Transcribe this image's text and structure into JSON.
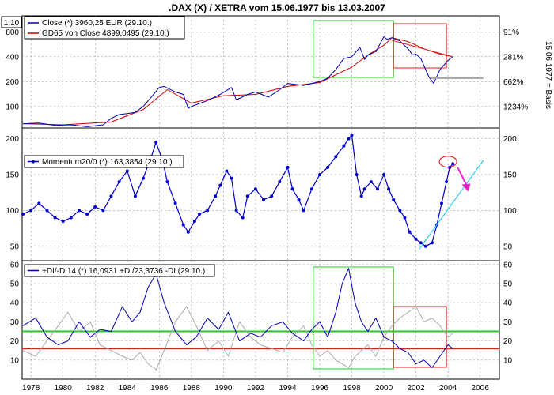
{
  "title": ".DAX (X) / XETRA vom 15.06.1977 bis 13.03.2007",
  "scale_label": "1:10",
  "side_label": "15.06.1977 = Basis",
  "x_ticks": [
    "1978",
    "1980",
    "1982",
    "1984",
    "1986",
    "1988",
    "1990",
    "1992",
    "1994",
    "1996",
    "1998",
    "2000",
    "2002",
    "2004",
    "2006"
  ],
  "x_range": [
    1977.45,
    2007.2
  ],
  "colors": {
    "price": "#0000aa",
    "gd65": "#cc0000",
    "momentum": "#0000cc",
    "di_plus": "#0000aa",
    "di_minus": "#aaaaaa",
    "green_box": "#22cc22",
    "red_box": "#dd2222",
    "magenta": "#ee22cc",
    "cyan": "#33ccee",
    "grid": "#999999"
  },
  "chart_data": [
    {
      "type": "line",
      "panel": "price",
      "scale": "log",
      "ylim": [
        55,
        1250
      ],
      "left_ticks": [
        100,
        200,
        400,
        800
      ],
      "right_ticks": [
        "1234%",
        "662%",
        "281%",
        "91%"
      ],
      "legend": {
        "close_label": "Close (*) 3960,25 EUR (29.10.)",
        "gd_label": "GD65 von Close 4899,0495 (29.10.)"
      },
      "series": [
        {
          "name": "Close",
          "x": [
            1977.5,
            1978.5,
            1979.5,
            1980.5,
            1981.5,
            1982.5,
            1983.0,
            1983.5,
            1984.0,
            1984.5,
            1985.0,
            1985.5,
            1986.0,
            1986.3,
            1987.0,
            1987.5,
            1987.8,
            1988.0,
            1989.0,
            1989.8,
            1990.5,
            1990.8,
            1991.5,
            1992.0,
            1992.8,
            1993.5,
            1994.0,
            1994.5,
            1995.0,
            1995.5,
            1996.0,
            1996.5,
            1997.0,
            1997.5,
            1998.0,
            1998.5,
            1998.8,
            1999.0,
            1999.5,
            2000.0,
            2000.2,
            2000.5,
            2001.0,
            2001.5,
            2001.8,
            2002.0,
            2002.3,
            2002.8,
            2003.1,
            2003.5,
            2004.0,
            2004.3
          ],
          "y": [
            62,
            63,
            59,
            60,
            57,
            60,
            72,
            80,
            82,
            85,
            100,
            130,
            170,
            175,
            150,
            140,
            95,
            100,
            118,
            140,
            170,
            120,
            140,
            150,
            130,
            160,
            190,
            185,
            180,
            190,
            200,
            220,
            280,
            380,
            400,
            520,
            370,
            420,
            460,
            700,
            650,
            680,
            620,
            500,
            420,
            430,
            380,
            230,
            190,
            280,
            360,
            400
          ]
        },
        {
          "name": "GD65 von Close",
          "x": [
            1977.5,
            1980.0,
            1983.0,
            1985.0,
            1986.5,
            1988.0,
            1990.0,
            1992.0,
            1994.0,
            1996.0,
            1998.0,
            1999.0,
            2000.0,
            2000.5,
            2001.5,
            2002.5,
            2003.5,
            2004.3
          ],
          "y": [
            62,
            60,
            65,
            92,
            160,
            110,
            135,
            140,
            175,
            195,
            300,
            420,
            550,
            680,
            610,
            500,
            430,
            400
          ]
        }
      ]
    },
    {
      "type": "line",
      "panel": "momentum",
      "ylim": [
        30,
        215
      ],
      "left_ticks": [
        50,
        100,
        150,
        200
      ],
      "right_ticks": [
        50,
        100,
        150,
        200
      ],
      "legend": {
        "label": "Momentum20/0 (*) 163,3854 (29.10.)"
      },
      "series": [
        {
          "name": "Momentum20/0",
          "x": [
            1977.5,
            1978.0,
            1978.5,
            1979.0,
            1979.5,
            1980.0,
            1980.5,
            1981.0,
            1981.5,
            1982.0,
            1982.5,
            1983.0,
            1983.5,
            1984.0,
            1984.5,
            1985.0,
            1985.5,
            1985.8,
            1986.2,
            1986.5,
            1987.0,
            1987.5,
            1987.8,
            1988.2,
            1988.5,
            1989.0,
            1989.5,
            1989.8,
            1990.2,
            1990.5,
            1990.8,
            1991.2,
            1991.5,
            1992.0,
            1992.5,
            1993.0,
            1993.5,
            1994.0,
            1994.3,
            1994.7,
            1995.0,
            1995.5,
            1996.0,
            1996.5,
            1997.0,
            1997.5,
            1997.8,
            1998.0,
            1998.3,
            1998.6,
            1998.8,
            1999.2,
            1999.6,
            2000.0,
            2000.3,
            2000.6,
            2001.0,
            2001.3,
            2001.6,
            2002.0,
            2002.3,
            2002.6,
            2003.0,
            2003.3,
            2003.6,
            2003.9,
            2004.1,
            2004.3
          ],
          "y": [
            95,
            100,
            110,
            100,
            90,
            85,
            90,
            100,
            95,
            105,
            100,
            120,
            140,
            155,
            120,
            145,
            175,
            195,
            170,
            140,
            110,
            80,
            70,
            85,
            95,
            100,
            120,
            135,
            155,
            145,
            100,
            90,
            120,
            130,
            115,
            120,
            140,
            160,
            130,
            115,
            100,
            130,
            150,
            160,
            175,
            190,
            200,
            205,
            150,
            120,
            130,
            140,
            130,
            150,
            130,
            115,
            100,
            90,
            70,
            60,
            55,
            50,
            55,
            80,
            110,
            140,
            160,
            165
          ]
        }
      ]
    },
    {
      "type": "line",
      "panel": "di",
      "ylim": [
        0,
        62
      ],
      "left_ticks": [
        10,
        20,
        30,
        40,
        50,
        60
      ],
      "right_ticks": [
        10,
        20,
        30,
        40,
        50,
        60
      ],
      "legend": {
        "label": "+DI/-DI14 (*) 16,0931 +DI/23,3736 -DI (29.10.)"
      },
      "levels": [
        25,
        16
      ],
      "series": [
        {
          "name": "+DI",
          "x": [
            1977.5,
            1978.3,
            1979.0,
            1979.7,
            1980.3,
            1981.0,
            1981.7,
            1982.3,
            1983.0,
            1983.7,
            1984.3,
            1984.8,
            1985.3,
            1985.8,
            1986.3,
            1987.0,
            1987.7,
            1988.3,
            1989.0,
            1989.7,
            1990.3,
            1991.0,
            1991.7,
            1992.3,
            1993.0,
            1993.7,
            1994.3,
            1995.0,
            1995.5,
            1996.0,
            1996.5,
            1997.0,
            1997.4,
            1997.8,
            1998.2,
            1998.6,
            1999.0,
            1999.5,
            2000.0,
            2000.5,
            2001.0,
            2001.5,
            2002.0,
            2002.5,
            2003.0,
            2003.5,
            2004.0,
            2004.3
          ],
          "y": [
            28,
            32,
            22,
            18,
            20,
            30,
            22,
            26,
            25,
            38,
            30,
            35,
            48,
            55,
            40,
            25,
            18,
            22,
            32,
            26,
            35,
            20,
            24,
            22,
            28,
            30,
            24,
            20,
            26,
            30,
            22,
            35,
            50,
            58,
            40,
            30,
            25,
            32,
            22,
            20,
            16,
            14,
            8,
            10,
            6,
            12,
            18,
            16
          ]
        },
        {
          "name": "-DI",
          "x": [
            1977.5,
            1978.3,
            1979.0,
            1979.7,
            1980.3,
            1981.0,
            1981.7,
            1982.3,
            1983.0,
            1983.7,
            1984.3,
            1984.8,
            1985.3,
            1985.8,
            1986.3,
            1987.0,
            1987.7,
            1988.3,
            1989.0,
            1989.7,
            1990.3,
            1991.0,
            1991.7,
            1992.3,
            1993.0,
            1993.7,
            1994.3,
            1995.0,
            1995.5,
            1996.0,
            1996.5,
            1997.0,
            1997.4,
            1997.8,
            1998.2,
            1998.6,
            1999.0,
            1999.5,
            2000.0,
            2000.5,
            2001.0,
            2001.5,
            2002.0,
            2002.5,
            2003.0,
            2003.5,
            2004.0,
            2004.3
          ],
          "y": [
            15,
            12,
            20,
            28,
            35,
            25,
            30,
            18,
            15,
            12,
            10,
            14,
            8,
            5,
            15,
            30,
            38,
            28,
            15,
            20,
            12,
            30,
            22,
            18,
            16,
            14,
            22,
            28,
            18,
            12,
            15,
            10,
            8,
            6,
            12,
            15,
            18,
            12,
            22,
            28,
            32,
            35,
            38,
            30,
            32,
            28,
            22,
            24
          ]
        }
      ]
    }
  ]
}
